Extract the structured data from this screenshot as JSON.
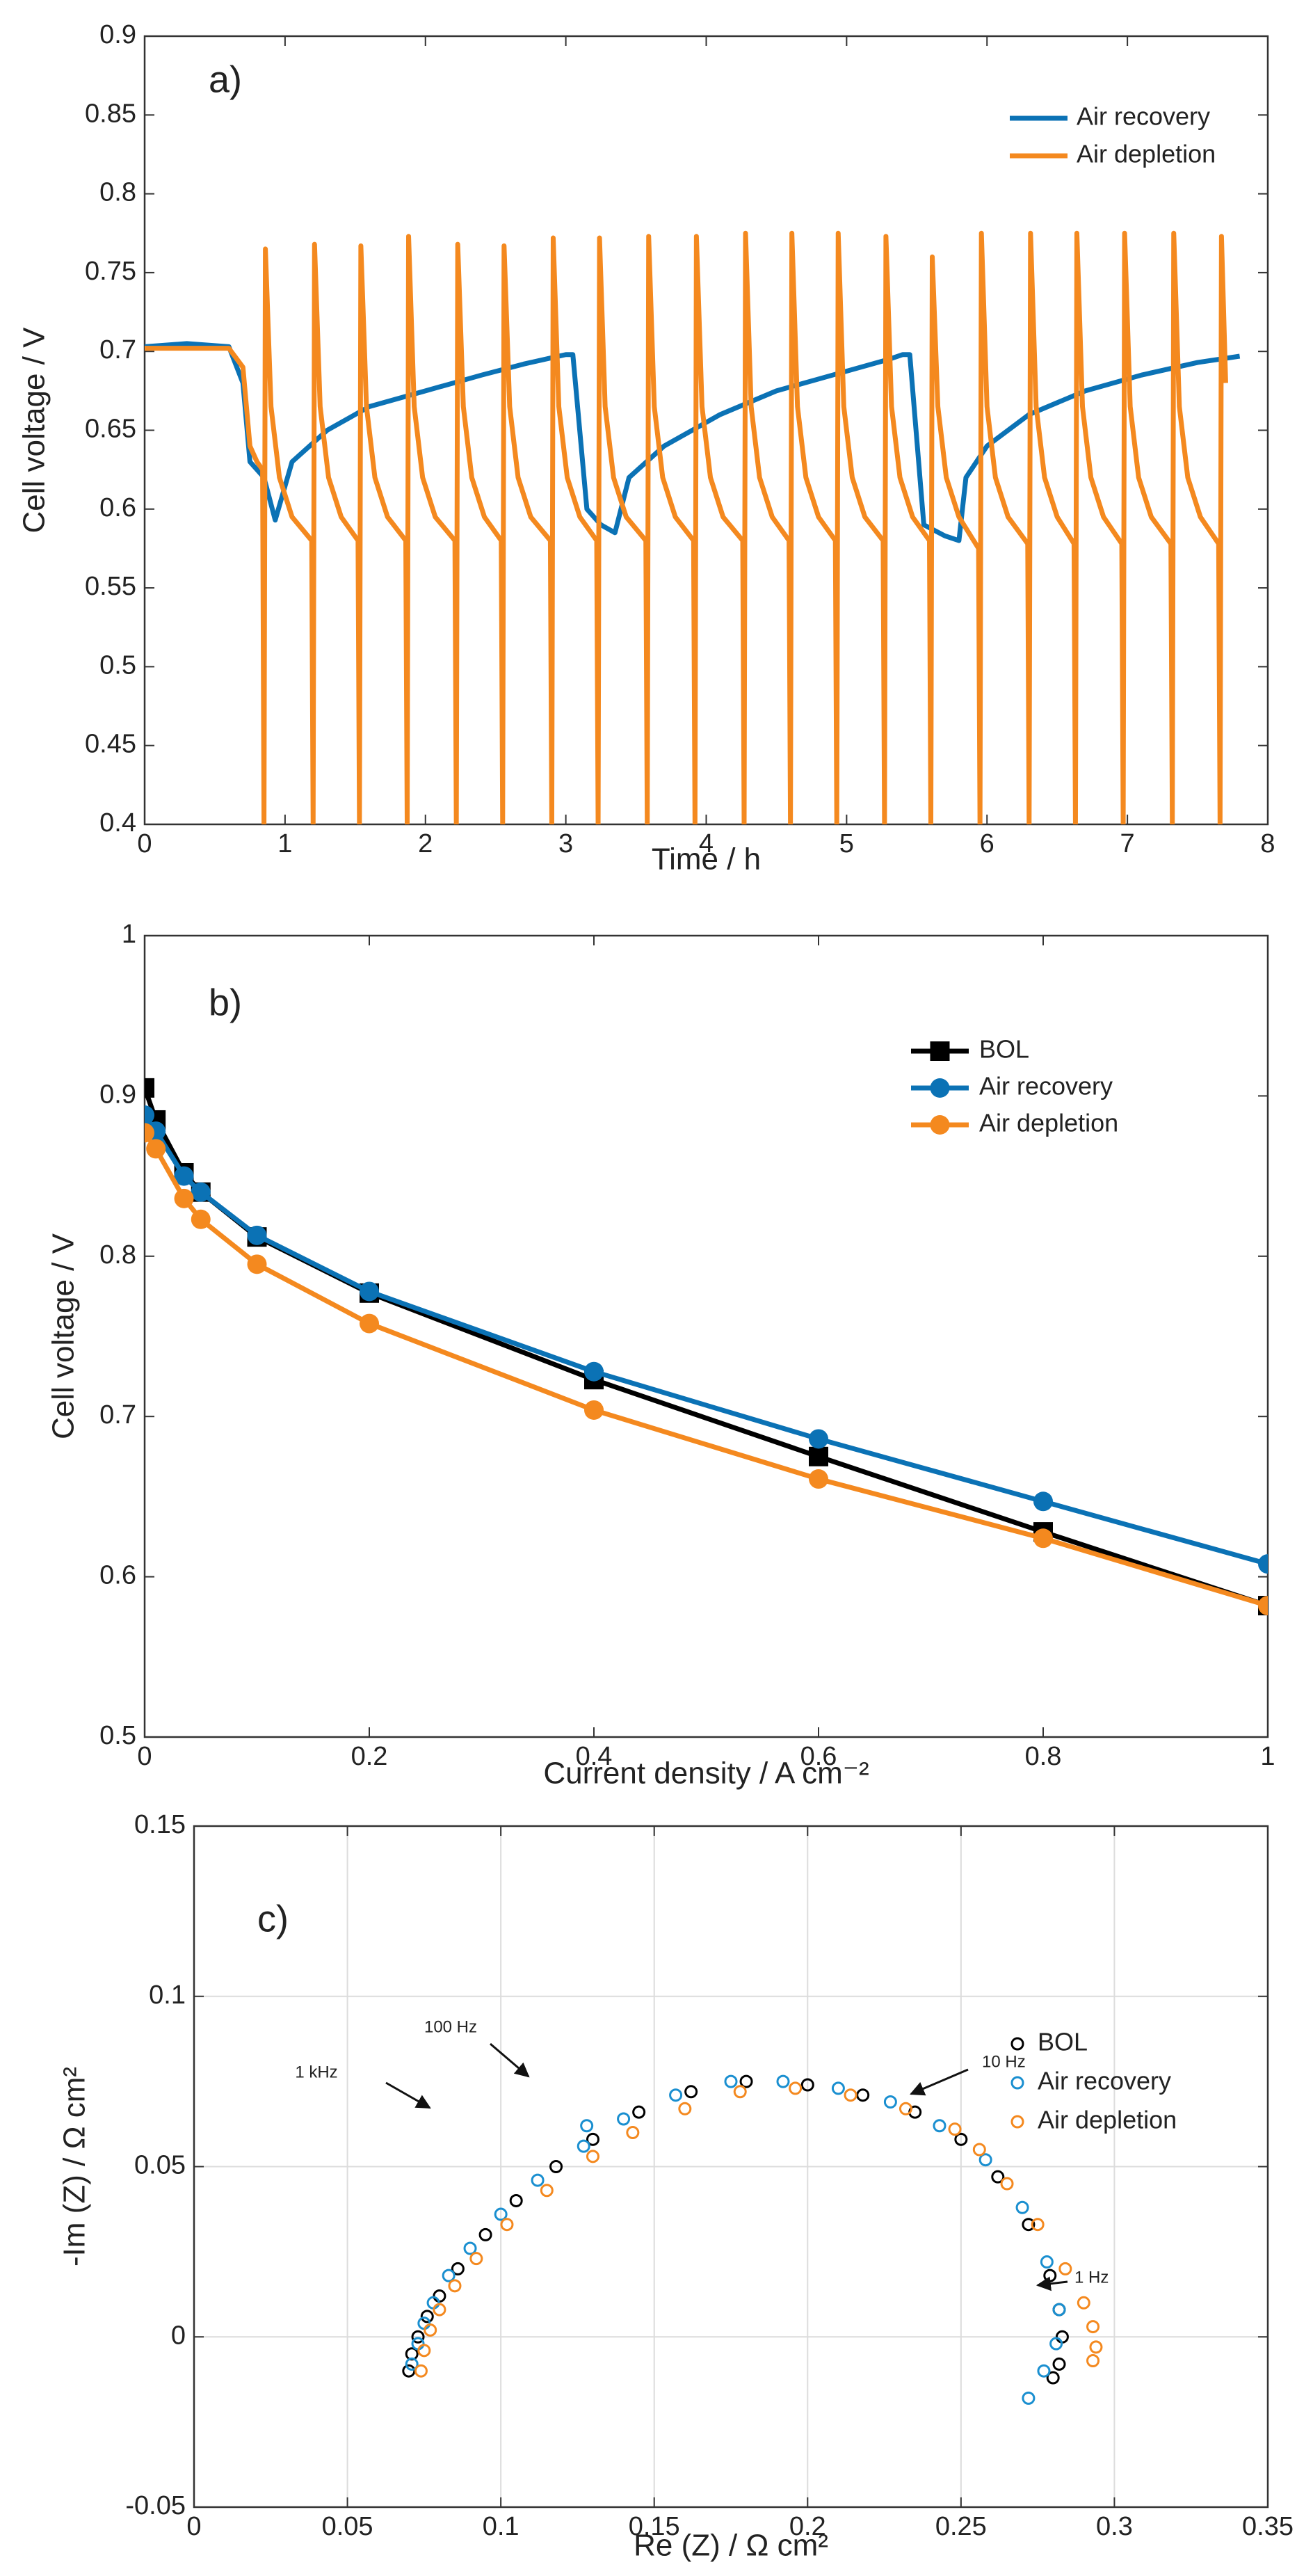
{
  "chart_data": [
    {
      "type": "line",
      "label": "a)",
      "xlabel": "Time / h",
      "ylabel": "Cell voltage / V",
      "xlim": [
        0,
        8
      ],
      "xticks": [
        0,
        1,
        2,
        3,
        4,
        5,
        6,
        7,
        8
      ],
      "ylim": [
        0.4,
        0.9
      ],
      "yticks": [
        0.4,
        0.45,
        0.5,
        0.55,
        0.6,
        0.65,
        0.7,
        0.75,
        0.8,
        0.85,
        0.9
      ],
      "grid": false,
      "legend": "upper right",
      "series": [
        {
          "name": "Air recovery",
          "color": "#0b72b5",
          "x": [
            0,
            0.3,
            0.6,
            0.7,
            0.75,
            0.85,
            0.93,
            1.05,
            1.3,
            1.6,
            2.0,
            2.4,
            2.7,
            3.0,
            3.05,
            3.15,
            3.25,
            3.35,
            3.45,
            3.7,
            4.1,
            4.5,
            4.9,
            5.3,
            5.4,
            5.45,
            5.55,
            5.7,
            5.8,
            5.85,
            6.0,
            6.3,
            6.7,
            7.1,
            7.5,
            7.8
          ],
          "values": [
            0.703,
            0.705,
            0.703,
            0.68,
            0.63,
            0.62,
            0.593,
            0.63,
            0.65,
            0.665,
            0.675,
            0.685,
            0.692,
            0.698,
            0.698,
            0.6,
            0.59,
            0.585,
            0.62,
            0.64,
            0.66,
            0.675,
            0.685,
            0.695,
            0.698,
            0.698,
            0.59,
            0.583,
            0.58,
            0.62,
            0.64,
            0.66,
            0.675,
            0.685,
            0.693,
            0.697
          ]
        },
        {
          "name": "Air depletion",
          "color": "#f4891f",
          "x": [
            0,
            0.6,
            0.7,
            0.75,
            0.8,
            0.84,
            0.85,
            0.86,
            0.9,
            0.96,
            1.05,
            1.19,
            1.2,
            1.21,
            1.25,
            1.31,
            1.4,
            1.52,
            1.53,
            1.54,
            1.58,
            1.64,
            1.73,
            1.86,
            1.87,
            1.88,
            1.92,
            1.98,
            2.07,
            2.21,
            2.22,
            2.23,
            2.27,
            2.33,
            2.42,
            2.54,
            2.55,
            2.56,
            2.6,
            2.66,
            2.75,
            2.89,
            2.9,
            2.91,
            2.95,
            3.01,
            3.1,
            3.22,
            3.23,
            3.24,
            3.28,
            3.34,
            3.43,
            3.57,
            3.58,
            3.59,
            3.63,
            3.69,
            3.78,
            3.91,
            3.92,
            3.93,
            3.97,
            4.03,
            4.12,
            4.26,
            4.27,
            4.28,
            4.32,
            4.38,
            4.47,
            4.59,
            4.6,
            4.61,
            4.65,
            4.71,
            4.8,
            4.92,
            4.93,
            4.94,
            4.98,
            5.04,
            5.13,
            5.26,
            5.27,
            5.28,
            5.32,
            5.38,
            5.47,
            5.59,
            5.6,
            5.61,
            5.65,
            5.71,
            5.8,
            5.94,
            5.95,
            5.96,
            6,
            6.06,
            6.15,
            6.29,
            6.3,
            6.31,
            6.35,
            6.41,
            6.5,
            6.62,
            6.63,
            6.64,
            6.68,
            6.74,
            6.83,
            6.96,
            6.97,
            6.98,
            7.02,
            7.08,
            7.17,
            7.31,
            7.32,
            7.33,
            7.37,
            7.43,
            7.52,
            7.65,
            7.66,
            7.67,
            7.7
          ],
          "values": [
            0.702,
            0.702,
            0.69,
            0.64,
            0.63,
            0.625,
            0.4,
            0.765,
            0.665,
            0.62,
            0.595,
            0.58,
            0.4,
            0.768,
            0.665,
            0.62,
            0.595,
            0.58,
            0.4,
            0.767,
            0.665,
            0.62,
            0.595,
            0.58,
            0.4,
            0.773,
            0.665,
            0.62,
            0.595,
            0.58,
            0.4,
            0.768,
            0.665,
            0.62,
            0.595,
            0.58,
            0.4,
            0.767,
            0.665,
            0.62,
            0.595,
            0.58,
            0.4,
            0.772,
            0.665,
            0.62,
            0.595,
            0.58,
            0.4,
            0.772,
            0.665,
            0.62,
            0.595,
            0.58,
            0.4,
            0.773,
            0.665,
            0.62,
            0.595,
            0.58,
            0.4,
            0.773,
            0.665,
            0.62,
            0.595,
            0.58,
            0.4,
            0.775,
            0.665,
            0.62,
            0.595,
            0.58,
            0.4,
            0.775,
            0.665,
            0.62,
            0.595,
            0.58,
            0.4,
            0.775,
            0.665,
            0.62,
            0.595,
            0.58,
            0.4,
            0.773,
            0.665,
            0.62,
            0.595,
            0.58,
            0.4,
            0.76,
            0.665,
            0.62,
            0.595,
            0.575,
            0.4,
            0.775,
            0.665,
            0.62,
            0.595,
            0.578,
            0.4,
            0.775,
            0.665,
            0.62,
            0.595,
            0.578,
            0.4,
            0.775,
            0.665,
            0.62,
            0.595,
            0.578,
            0.4,
            0.775,
            0.665,
            0.62,
            0.595,
            0.578,
            0.4,
            0.775,
            0.665,
            0.62,
            0.595,
            0.578,
            0.4,
            0.773,
            0.68
          ]
        }
      ]
    },
    {
      "type": "line",
      "label": "b)",
      "xlabel": "Current density / A cm⁻²",
      "ylabel": "Cell voltage / V",
      "xlim": [
        0,
        1
      ],
      "xticks": [
        0,
        0.2,
        0.4,
        0.6,
        0.8,
        1
      ],
      "ylim": [
        0.5,
        1
      ],
      "yticks": [
        0.5,
        0.6,
        0.7,
        0.8,
        0.9,
        1
      ],
      "grid": false,
      "legend": "upper right",
      "x": [
        0,
        0.01,
        0.035,
        0.05,
        0.1,
        0.2,
        0.4,
        0.6,
        0.8,
        1
      ],
      "series": [
        {
          "name": "BOL",
          "color": "#000000",
          "marker": "square",
          "values": [
            0.905,
            0.885,
            0.852,
            0.84,
            0.812,
            0.777,
            0.723,
            0.675,
            0.628,
            0.582
          ]
        },
        {
          "name": "Air recovery",
          "color": "#0b72b5",
          "marker": "circle",
          "values": [
            0.888,
            0.878,
            0.85,
            0.84,
            0.813,
            0.778,
            0.728,
            0.686,
            0.647,
            0.608
          ]
        },
        {
          "name": "Air depletion",
          "color": "#f4891f",
          "marker": "circle",
          "values": [
            0.877,
            0.867,
            0.836,
            0.823,
            0.795,
            0.758,
            0.704,
            0.661,
            0.624,
            0.582
          ]
        }
      ]
    },
    {
      "type": "scatter",
      "label": "c)",
      "xlabel": "Re (Z) / Ω  cm²",
      "ylabel": "-Im (Z) / Ω cm²",
      "xlim": [
        0,
        0.35
      ],
      "xticks": [
        0,
        0.05,
        0.1,
        0.15,
        0.2,
        0.25,
        0.3,
        0.35
      ],
      "ylim": [
        -0.05,
        0.15
      ],
      "yticks": [
        -0.05,
        0,
        0.05,
        0.1,
        0.15
      ],
      "grid": true,
      "legend": "upper right",
      "annotations": [
        "100 Hz",
        "10 Hz",
        "1 kHz",
        "1 Hz"
      ],
      "series": [
        {
          "name": "BOL",
          "color": "#000000",
          "x": [
            0.07,
            0.071,
            0.073,
            0.076,
            0.08,
            0.086,
            0.095,
            0.105,
            0.118,
            0.13,
            0.145,
            0.162,
            0.18,
            0.2,
            0.218,
            0.235,
            0.25,
            0.262,
            0.272,
            0.279,
            0.282,
            0.283,
            0.282,
            0.28
          ],
          "values": [
            -0.01,
            -0.005,
            0,
            0.006,
            0.012,
            0.02,
            0.03,
            0.04,
            0.05,
            0.058,
            0.066,
            0.072,
            0.075,
            0.074,
            0.071,
            0.066,
            0.058,
            0.047,
            0.033,
            0.018,
            0.008,
            0,
            -0.008,
            -0.012
          ]
        },
        {
          "name": "Air recovery",
          "color": "#1a8fd0",
          "x": [
            0.071,
            0.073,
            0.075,
            0.078,
            0.083,
            0.09,
            0.1,
            0.112,
            0.127,
            0.128,
            0.14,
            0.157,
            0.175,
            0.192,
            0.21,
            0.227,
            0.243,
            0.258,
            0.27,
            0.278,
            0.282,
            0.281,
            0.277,
            0.272
          ],
          "values": [
            -0.008,
            -0.002,
            0.004,
            0.01,
            0.018,
            0.026,
            0.036,
            0.046,
            0.056,
            0.062,
            0.064,
            0.071,
            0.075,
            0.075,
            0.073,
            0.069,
            0.062,
            0.052,
            0.038,
            0.022,
            0.008,
            -0.002,
            -0.01,
            -0.018
          ]
        },
        {
          "name": "Air depletion",
          "color": "#f4891f",
          "x": [
            0.074,
            0.075,
            0.077,
            0.08,
            0.085,
            0.092,
            0.102,
            0.115,
            0.13,
            0.143,
            0.16,
            0.178,
            0.196,
            0.214,
            0.232,
            0.248,
            0.256,
            0.265,
            0.275,
            0.284,
            0.29,
            0.293,
            0.294,
            0.293
          ],
          "values": [
            -0.01,
            -0.004,
            0.002,
            0.008,
            0.015,
            0.023,
            0.033,
            0.043,
            0.053,
            0.06,
            0.067,
            0.072,
            0.073,
            0.071,
            0.067,
            0.061,
            0.055,
            0.045,
            0.033,
            0.02,
            0.01,
            0.003,
            -0.003,
            -0.007
          ]
        }
      ]
    }
  ]
}
